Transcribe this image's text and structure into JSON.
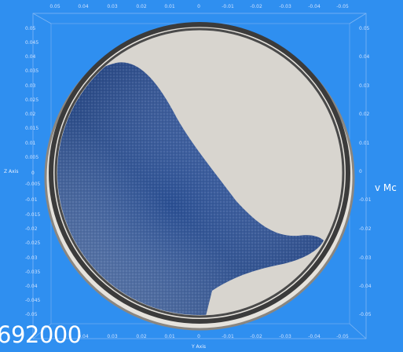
{
  "viewer": {
    "frame_counter": "692000",
    "scalar_bar_title": "v Mc",
    "colors": {
      "background": "#2f8ff0",
      "drum_wall": "#3b3b3b",
      "drum_interior": "#d8d5cf",
      "particles_low": "#2a4f93",
      "particles_high": "#c2622a"
    }
  },
  "axes": {
    "x_axis_title": "Y Axis",
    "y_axis_title": "Z Axis",
    "top_ticks": [
      "0.05",
      "0.04",
      "0.03",
      "0.02",
      "0.01",
      "0",
      "-0.01",
      "-0.02",
      "-0.03",
      "-0.04",
      "-0.05"
    ],
    "bottom_ticks": [
      "0.04",
      "0.03",
      "0.02",
      "0.01",
      "0",
      "-0.01",
      "-0.02",
      "-0.03",
      "-0.04",
      "-0.05"
    ],
    "left_ticks": [
      "0.05",
      "0.045",
      "0.04",
      "0.035",
      "0.03",
      "0.025",
      "0.02",
      "0.015",
      "0.01",
      "0.005",
      "0",
      "-0.005",
      "-0.01",
      "-0.015",
      "-0.02",
      "-0.025",
      "-0.03",
      "-0.035",
      "-0.04",
      "-0.045",
      "-0.05"
    ],
    "right_ticks": [
      "0.05",
      "0.04",
      "0.03",
      "0.02",
      "0.01",
      "0",
      "-0.01",
      "-0.02",
      "-0.03",
      "-0.04",
      "-0.05"
    ]
  }
}
